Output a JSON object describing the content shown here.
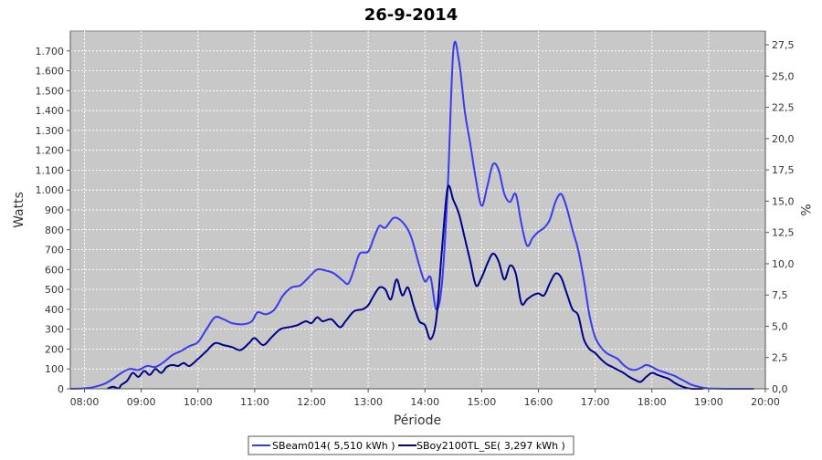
{
  "chart_data": {
    "type": "line",
    "title": "26-9-2014",
    "xlabel": "Période",
    "ylabel": "Watts",
    "y2label": "%",
    "xlim": [
      7.75,
      20.0
    ],
    "ylim": [
      0,
      1800
    ],
    "y2lim": [
      0,
      28.6
    ],
    "x_ticks": [
      8,
      9,
      10,
      11,
      12,
      13,
      14,
      15,
      16,
      17,
      18,
      19,
      20
    ],
    "x_tick_labels": [
      "08:00",
      "09:00",
      "10:00",
      "11:00",
      "12:00",
      "13:00",
      "14:00",
      "15:00",
      "16:00",
      "17:00",
      "18:00",
      "19:00",
      "20:00"
    ],
    "y_ticks": [
      0,
      100,
      200,
      300,
      400,
      500,
      600,
      700,
      800,
      900,
      1000,
      1100,
      1200,
      1300,
      1400,
      1500,
      1600,
      1700
    ],
    "y_tick_labels": [
      "0",
      "100",
      "200",
      "300",
      "400",
      "500",
      "600",
      "700",
      "800",
      "900",
      "1.000",
      "1.100",
      "1.200",
      "1.300",
      "1.400",
      "1.500",
      "1.600",
      "1.700"
    ],
    "y2_ticks": [
      0,
      2.5,
      5,
      7.5,
      10,
      12.5,
      15,
      17.5,
      20,
      22.5,
      25,
      27.5
    ],
    "y2_tick_labels": [
      "0,0",
      "2,5",
      "5,0",
      "7,5",
      "10,0",
      "12,5",
      "15,0",
      "17,5",
      "20,0",
      "22,5",
      "25,0",
      "27,5"
    ],
    "grid": true,
    "legend_position": "bottom",
    "plot_background": "#c8c8c8",
    "series": [
      {
        "name": "SBeam014( 5,510 kWh )",
        "color": "#3a3aef",
        "x": [
          7.75,
          7.95,
          8.15,
          8.35,
          8.5,
          8.65,
          8.8,
          8.95,
          9.1,
          9.25,
          9.4,
          9.55,
          9.7,
          9.85,
          10.0,
          10.15,
          10.3,
          10.45,
          10.6,
          10.8,
          10.95,
          11.05,
          11.2,
          11.35,
          11.5,
          11.65,
          11.8,
          11.95,
          12.1,
          12.25,
          12.4,
          12.55,
          12.65,
          12.75,
          12.85,
          13.0,
          13.1,
          13.2,
          13.3,
          13.45,
          13.6,
          13.75,
          13.9,
          14.0,
          14.1,
          14.2,
          14.3,
          14.4,
          14.5,
          14.6,
          14.7,
          14.8,
          14.9,
          15.0,
          15.1,
          15.2,
          15.3,
          15.4,
          15.5,
          15.6,
          15.7,
          15.8,
          15.9,
          16.0,
          16.1,
          16.2,
          16.3,
          16.4,
          16.5,
          16.6,
          16.7,
          16.8,
          16.9,
          17.0,
          17.1,
          17.2,
          17.3,
          17.4,
          17.5,
          17.6,
          17.7,
          17.8,
          17.9,
          18.0,
          18.1,
          18.2,
          18.3,
          18.4,
          18.5,
          18.6,
          18.7,
          18.8,
          18.9,
          19.0,
          19.1,
          19.3,
          19.6,
          19.8
        ],
        "y": [
          0,
          2,
          8,
          25,
          50,
          80,
          100,
          95,
          115,
          110,
          135,
          170,
          190,
          215,
          235,
          300,
          360,
          350,
          330,
          325,
          340,
          385,
          375,
          400,
          470,
          510,
          520,
          560,
          600,
          595,
          580,
          545,
          530,
          600,
          680,
          690,
          760,
          820,
          810,
          860,
          840,
          770,
          620,
          540,
          560,
          400,
          530,
          1000,
          1700,
          1650,
          1400,
          1230,
          1050,
          920,
          1020,
          1130,
          1100,
          980,
          940,
          980,
          830,
          720,
          760,
          790,
          810,
          850,
          940,
          980,
          910,
          800,
          700,
          550,
          370,
          260,
          210,
          180,
          165,
          150,
          120,
          100,
          95,
          105,
          120,
          110,
          95,
          85,
          75,
          65,
          50,
          35,
          20,
          12,
          5,
          2,
          1,
          0,
          0,
          0
        ]
      },
      {
        "name": "SBoy2100TL_SE( 3,297 kWh )",
        "color": "#00008b",
        "x": [
          8.4,
          8.5,
          8.6,
          8.65,
          8.75,
          8.85,
          8.95,
          9.05,
          9.15,
          9.25,
          9.35,
          9.45,
          9.55,
          9.65,
          9.75,
          9.85,
          10.0,
          10.15,
          10.3,
          10.45,
          10.6,
          10.75,
          10.9,
          11.0,
          11.15,
          11.3,
          11.45,
          11.6,
          11.75,
          11.9,
          12.0,
          12.1,
          12.2,
          12.35,
          12.5,
          12.6,
          12.75,
          12.9,
          13.0,
          13.1,
          13.2,
          13.3,
          13.4,
          13.5,
          13.6,
          13.7,
          13.8,
          13.9,
          14.0,
          14.1,
          14.2,
          14.3,
          14.4,
          14.5,
          14.6,
          14.7,
          14.8,
          14.9,
          15.0,
          15.1,
          15.2,
          15.3,
          15.4,
          15.5,
          15.6,
          15.7,
          15.8,
          15.9,
          16.0,
          16.1,
          16.2,
          16.3,
          16.4,
          16.5,
          16.6,
          16.7,
          16.8,
          16.9,
          17.0,
          17.1,
          17.2,
          17.3,
          17.4,
          17.5,
          17.6,
          17.7,
          17.8,
          17.9,
          18.0,
          18.1,
          18.2,
          18.3,
          18.4,
          18.5,
          18.6,
          18.7,
          18.8,
          18.9
        ],
        "y": [
          0,
          10,
          2,
          20,
          40,
          80,
          60,
          90,
          70,
          100,
          80,
          110,
          120,
          115,
          130,
          115,
          150,
          190,
          230,
          220,
          210,
          195,
          230,
          255,
          220,
          260,
          300,
          310,
          320,
          340,
          330,
          360,
          340,
          350,
          310,
          340,
          390,
          400,
          420,
          470,
          510,
          500,
          450,
          550,
          470,
          510,
          420,
          340,
          320,
          250,
          350,
          700,
          1010,
          950,
          880,
          760,
          640,
          520,
          560,
          630,
          680,
          640,
          550,
          620,
          580,
          430,
          450,
          470,
          480,
          470,
          530,
          580,
          560,
          480,
          400,
          370,
          250,
          200,
          180,
          150,
          125,
          110,
          95,
          80,
          60,
          45,
          35,
          60,
          80,
          70,
          60,
          50,
          30,
          15,
          5,
          0,
          0,
          0
        ]
      }
    ]
  }
}
